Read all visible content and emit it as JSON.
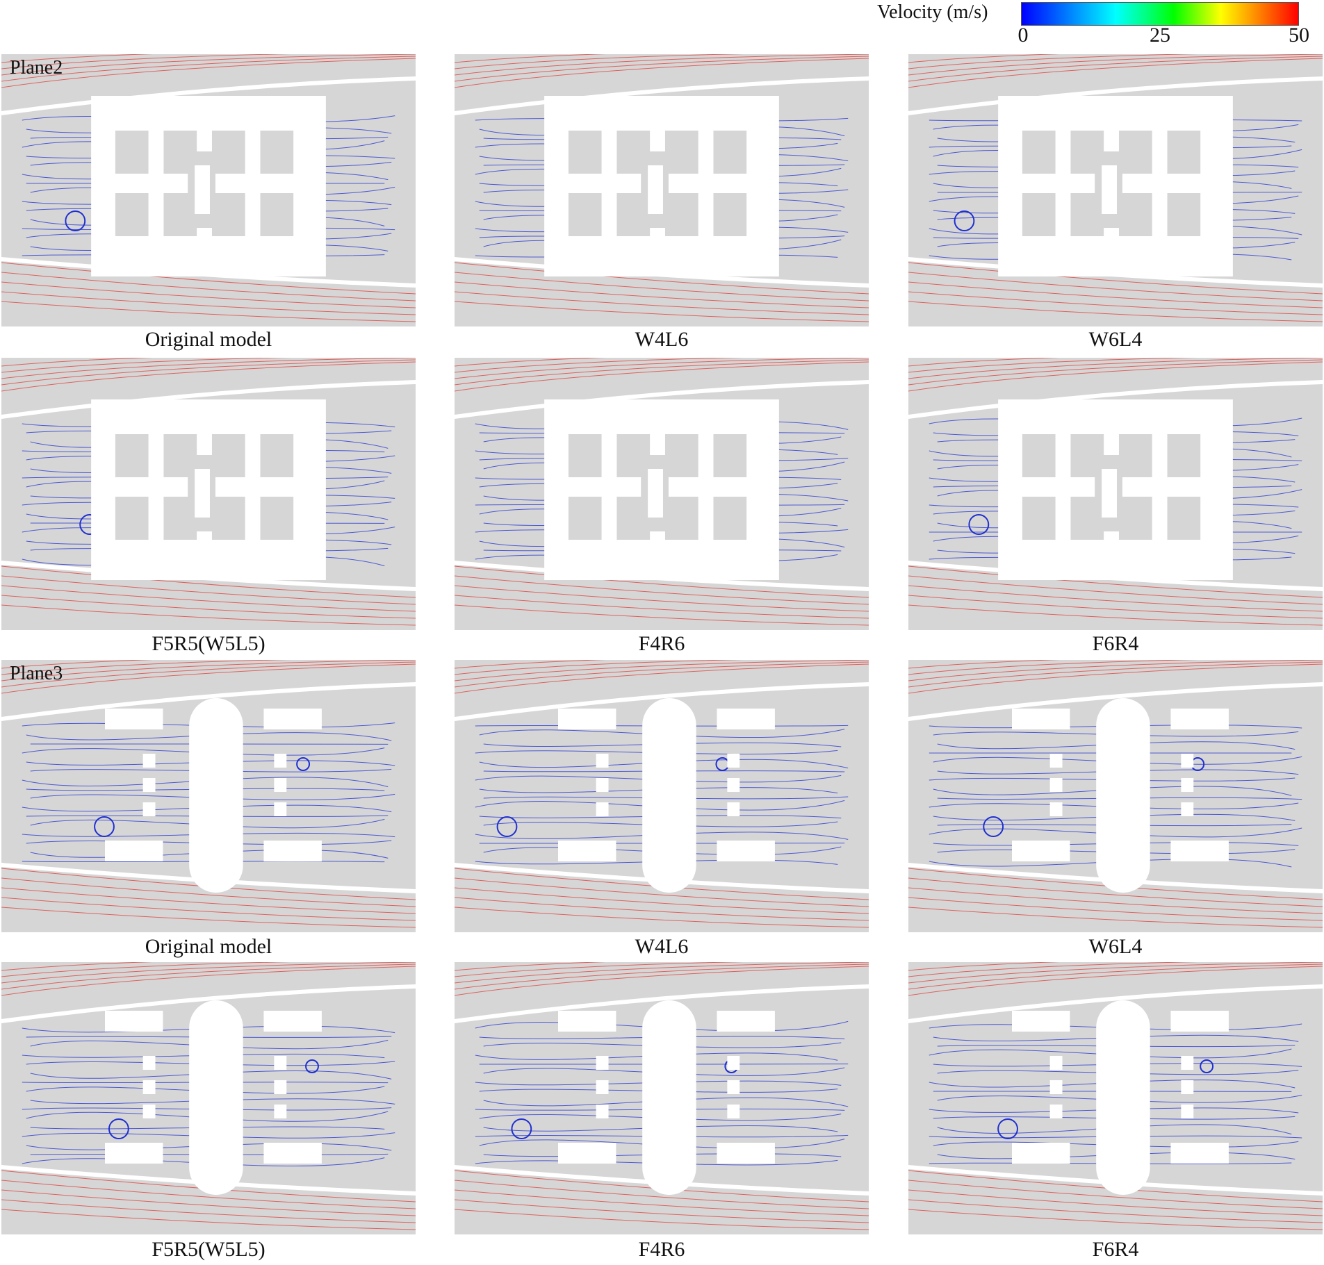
{
  "legend": {
    "title": "Velocity (m/s)",
    "ticks": [
      "0",
      "25",
      "50"
    ],
    "colors": [
      "#0000ff",
      "#00ffff",
      "#00ff00",
      "#ffff00",
      "#ff0000"
    ]
  },
  "plane_labels": [
    "Plane2",
    "Plane3"
  ],
  "captions": [
    "Original model",
    "W4L6",
    "W6L4",
    "F5R5(W5L5)",
    "F4R6",
    "F6R4",
    "Original model",
    "W4L6",
    "W6L4",
    "F5R5(W5L5)",
    "F4R6",
    "F6R4"
  ],
  "colors": {
    "panel_background": "#d6d6d6",
    "building": "#ffffff",
    "low_velocity_streamline": "#1f2fd0",
    "high_velocity_streamline": "#e0302a"
  }
}
